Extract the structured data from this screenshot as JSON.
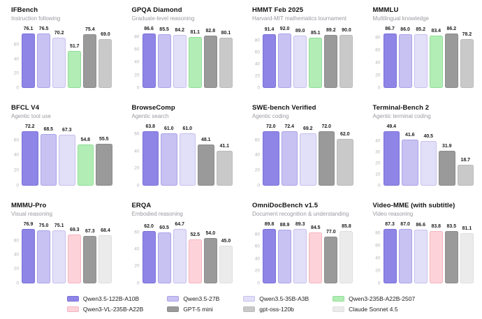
{
  "page": {
    "background": "#ffffff"
  },
  "series": [
    {
      "name": "Qwen3.5-122B-A10B",
      "color": "#8e85e6",
      "border": "#7b71d9"
    },
    {
      "name": "Qwen3.5-27B",
      "color": "#c7c2f2",
      "border": "#aba3e9"
    },
    {
      "name": "Qwen3.5-35B-A3B",
      "color": "#e2dff8",
      "border": "#c6c1ee"
    },
    {
      "name": "Qwen3-235B-A22B-2507",
      "color": "#b2edb5",
      "border": "#91dd99"
    },
    {
      "name": "Qwen3-VL-235B-A22B",
      "color": "#fdd3d9",
      "border": "#f6b4c0"
    },
    {
      "name": "GPT-5 mini",
      "color": "#9a9a9a",
      "border": "#8c8c8c"
    },
    {
      "name": "gpt-oss-120b",
      "color": "#c9c9c9",
      "border": "#bbbbbb"
    },
    {
      "name": "Claude Sonnet 4.5",
      "color": "#ebebeb",
      "border": "#dedede"
    }
  ],
  "chart_data": [
    {
      "type": "bar",
      "title": "IFBench",
      "subtitle": "Instruction following",
      "yticks": [
        0,
        20,
        40,
        60
      ],
      "ymax": 76.5,
      "bars": [
        {
          "series": 0,
          "value": 76.1
        },
        {
          "series": 1,
          "value": 76.5
        },
        {
          "series": 2,
          "value": 70.2
        },
        {
          "series": 3,
          "value": 51.7
        },
        {
          "series": 5,
          "value": 75.4
        },
        {
          "series": 6,
          "value": 69.0
        }
      ]
    },
    {
      "type": "bar",
      "title": "GPQA Diamond",
      "subtitle": "Graduate-level reasoning",
      "yticks": [
        0,
        20,
        40,
        60,
        80
      ],
      "ymax": 86.6,
      "bars": [
        {
          "series": 0,
          "value": 86.6
        },
        {
          "series": 1,
          "value": 85.5
        },
        {
          "series": 2,
          "value": 84.2
        },
        {
          "series": 3,
          "value": 81.1
        },
        {
          "series": 5,
          "value": 82.8
        },
        {
          "series": 6,
          "value": 80.1
        }
      ]
    },
    {
      "type": "bar",
      "title": "HMMT Feb 2025",
      "subtitle": "Harvard-MIT mathematics tournament",
      "yticks": [
        0,
        20,
        40,
        60,
        80
      ],
      "ymax": 92.0,
      "bars": [
        {
          "series": 0,
          "value": 91.4
        },
        {
          "series": 1,
          "value": 92.0
        },
        {
          "series": 2,
          "value": 89.0
        },
        {
          "series": 3,
          "value": 85.1
        },
        {
          "series": 5,
          "value": 89.2
        },
        {
          "series": 6,
          "value": 90.0
        }
      ]
    },
    {
      "type": "bar",
      "title": "MMMLU",
      "subtitle": "Multilingual knowledge",
      "yticks": [
        0,
        20,
        40,
        60,
        80
      ],
      "ymax": 86.7,
      "bars": [
        {
          "series": 0,
          "value": 86.7
        },
        {
          "series": 1,
          "value": 86.0
        },
        {
          "series": 2,
          "value": 85.2
        },
        {
          "series": 3,
          "value": 83.4
        },
        {
          "series": 5,
          "value": 86.2
        },
        {
          "series": 6,
          "value": 78.2
        }
      ]
    },
    {
      "type": "bar",
      "title": "BFCL V4",
      "subtitle": "Agentic tool use",
      "yticks": [
        0,
        20,
        40,
        60
      ],
      "ymax": 72.2,
      "bars": [
        {
          "series": 0,
          "value": 72.2
        },
        {
          "series": 1,
          "value": 68.5
        },
        {
          "series": 2,
          "value": 67.3
        },
        {
          "series": 3,
          "value": 54.8
        },
        {
          "series": 5,
          "value": 55.5
        }
      ]
    },
    {
      "type": "bar",
      "title": "BrowseComp",
      "subtitle": "Agentic search",
      "yticks": [
        0,
        20,
        40,
        60
      ],
      "ymax": 63.8,
      "bars": [
        {
          "series": 0,
          "value": 63.8
        },
        {
          "series": 1,
          "value": 61.0
        },
        {
          "series": 2,
          "value": 61.0
        },
        {
          "series": 5,
          "value": 48.1
        },
        {
          "series": 6,
          "value": 41.1
        }
      ]
    },
    {
      "type": "bar",
      "title": "SWE-bench Verified",
      "subtitle": "Agentic coding",
      "yticks": [
        0,
        20,
        40,
        60
      ],
      "ymax": 72.4,
      "bars": [
        {
          "series": 0,
          "value": 72.0
        },
        {
          "series": 1,
          "value": 72.4
        },
        {
          "series": 2,
          "value": 69.2
        },
        {
          "series": 5,
          "value": 72.0
        },
        {
          "series": 6,
          "value": 62.0
        }
      ]
    },
    {
      "type": "bar",
      "title": "Terminal-Bench 2",
      "subtitle": "Agentic terminal coding",
      "yticks": [
        0,
        10,
        20,
        30,
        40
      ],
      "ymax": 49.4,
      "bars": [
        {
          "series": 0,
          "value": 49.4
        },
        {
          "series": 1,
          "value": 41.6
        },
        {
          "series": 2,
          "value": 40.5
        },
        {
          "series": 5,
          "value": 31.9
        },
        {
          "series": 6,
          "value": 18.7
        }
      ]
    },
    {
      "type": "bar",
      "title": "MMMU-Pro",
      "subtitle": "Visual reasoning",
      "yticks": [
        0,
        20,
        40,
        60
      ],
      "ymax": 76.9,
      "bars": [
        {
          "series": 0,
          "value": 76.9
        },
        {
          "series": 1,
          "value": 75.0
        },
        {
          "series": 2,
          "value": 75.1
        },
        {
          "series": 4,
          "value": 69.3
        },
        {
          "series": 5,
          "value": 67.3
        },
        {
          "series": 7,
          "value": 68.4
        }
      ]
    },
    {
      "type": "bar",
      "title": "ERQA",
      "subtitle": "Embodied reasoning",
      "yticks": [
        0,
        20,
        40,
        60
      ],
      "ymax": 64.7,
      "bars": [
        {
          "series": 0,
          "value": 62.0
        },
        {
          "series": 1,
          "value": 60.5
        },
        {
          "series": 2,
          "value": 64.7
        },
        {
          "series": 4,
          "value": 52.5
        },
        {
          "series": 5,
          "value": 54.0
        },
        {
          "series": 7,
          "value": 45.0
        }
      ]
    },
    {
      "type": "bar",
      "title": "OmniDocBench v1.5",
      "subtitle": "Document recognition & understanding",
      "yticks": [
        0,
        20,
        40,
        60,
        80
      ],
      "ymax": 89.8,
      "bars": [
        {
          "series": 0,
          "value": 89.8
        },
        {
          "series": 1,
          "value": 88.9
        },
        {
          "series": 2,
          "value": 89.3
        },
        {
          "series": 4,
          "value": 84.5
        },
        {
          "series": 5,
          "value": 77.0
        },
        {
          "series": 7,
          "value": 85.8
        }
      ]
    },
    {
      "type": "bar",
      "title": "Video-MME (with subtitle)",
      "subtitle": "Video reasoning",
      "yticks": [
        0,
        20,
        40,
        60,
        80
      ],
      "ymax": 87.3,
      "bars": [
        {
          "series": 0,
          "value": 87.3
        },
        {
          "series": 1,
          "value": 87.0
        },
        {
          "series": 2,
          "value": 86.6
        },
        {
          "series": 4,
          "value": 83.8
        },
        {
          "series": 5,
          "value": 83.5
        },
        {
          "series": 7,
          "value": 81.1
        }
      ]
    }
  ],
  "legend": {
    "order": [
      0,
      1,
      2,
      3,
      4,
      5,
      6,
      7
    ]
  }
}
